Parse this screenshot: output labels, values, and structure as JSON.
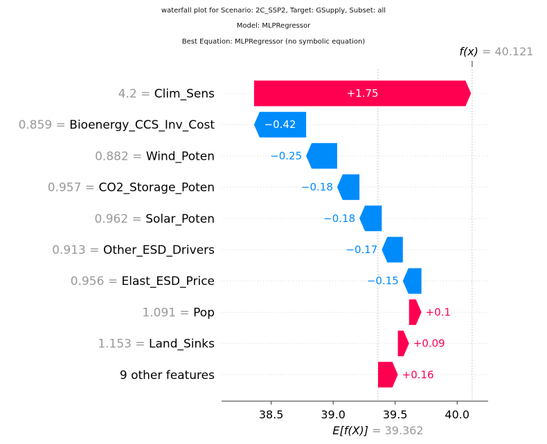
{
  "titles": {
    "line1": "waterfall plot for Scenario: 2C_SSP2, Target: GSupply, Subset: all",
    "line2": "Model: MLPRegressor",
    "line3": "Best Equation: MLPRegressor (no symbolic equation)"
  },
  "colors": {
    "positive": "#ff0051",
    "negative": "#008bfb",
    "value_gray": "#999999"
  },
  "chart_data": {
    "type": "waterfall",
    "title": "waterfall plot for Scenario: 2C_SSP2, Target: GSupply, Subset: all",
    "base_value": 39.362,
    "output_value": 40.121,
    "base_label": "E[f(X)]",
    "base_value_text": "= 39.362",
    "output_label": "f(x)",
    "output_value_text": "= 40.121",
    "xlim": [
      38.1,
      40.25
    ],
    "xticks": [
      38.5,
      39.0,
      39.5,
      40.0
    ],
    "xtick_labels": [
      "38.5",
      "39.0",
      "39.5",
      "40.0"
    ],
    "features": [
      {
        "value": "4.2 =",
        "name": "Clim_Sens",
        "contribution": 1.75,
        "label": "+1.75"
      },
      {
        "value": "0.859 =",
        "name": "Bioenergy_CCS_Inv_Cost",
        "contribution": -0.42,
        "label": "−0.42"
      },
      {
        "value": "0.882 =",
        "name": "Wind_Poten",
        "contribution": -0.25,
        "label": "−0.25"
      },
      {
        "value": "0.957 =",
        "name": "CO2_Storage_Poten",
        "contribution": -0.18,
        "label": "−0.18"
      },
      {
        "value": "0.962 =",
        "name": "Solar_Poten",
        "contribution": -0.18,
        "label": "−0.18"
      },
      {
        "value": "0.913 =",
        "name": "Other_ESD_Drivers",
        "contribution": -0.17,
        "label": "−0.17"
      },
      {
        "value": "0.956 =",
        "name": "Elast_ESD_Price",
        "contribution": -0.15,
        "label": "−0.15"
      },
      {
        "value": "1.091 =",
        "name": "Pop",
        "contribution": 0.1,
        "label": "+0.1"
      },
      {
        "value": "1.153 =",
        "name": "Land_Sinks",
        "contribution": 0.09,
        "label": "+0.09"
      },
      {
        "value": "",
        "name": "9 other features",
        "contribution": 0.16,
        "label": "+0.16"
      }
    ]
  }
}
